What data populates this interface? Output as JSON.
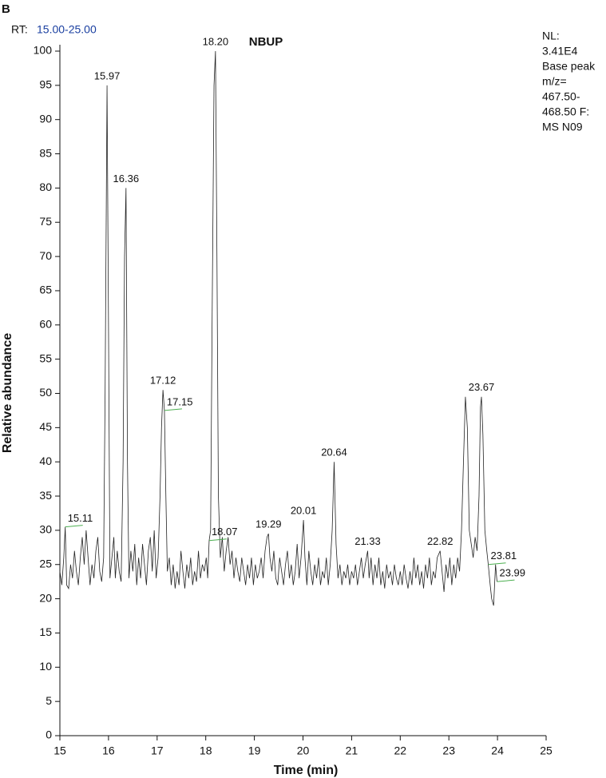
{
  "chart_data": {
    "type": "line",
    "panel_label": "B",
    "rt_label": "RT:",
    "rt_range": "15.00-25.00",
    "title": "NBUP",
    "info": [
      "NL:",
      "3.41E4",
      "Base peak",
      "m/z=",
      "467.50-",
      "468.50 F:",
      "MS N09"
    ],
    "xlabel": "Time (min)",
    "ylabel": "Relative abundance",
    "xlim": [
      15,
      25
    ],
    "ylim": [
      0,
      100
    ],
    "xticks": [
      15,
      16,
      17,
      18,
      19,
      20,
      21,
      22,
      23,
      24,
      25
    ],
    "yticks": [
      0,
      5,
      10,
      15,
      20,
      25,
      30,
      35,
      40,
      45,
      50,
      55,
      60,
      65,
      70,
      75,
      80,
      85,
      90,
      95,
      100
    ],
    "color": "#222222",
    "leader_color": "#4caf50",
    "x": [
      15.0,
      15.04,
      15.08,
      15.11,
      15.14,
      15.18,
      15.22,
      15.26,
      15.3,
      15.34,
      15.38,
      15.42,
      15.46,
      15.5,
      15.54,
      15.58,
      15.62,
      15.66,
      15.7,
      15.74,
      15.78,
      15.82,
      15.86,
      15.9,
      15.93,
      15.97,
      16.0,
      16.03,
      16.07,
      16.11,
      16.14,
      16.18,
      16.22,
      16.26,
      16.3,
      16.33,
      16.36,
      16.39,
      16.42,
      16.46,
      16.5,
      16.54,
      16.58,
      16.62,
      16.66,
      16.7,
      16.74,
      16.78,
      16.82,
      16.86,
      16.9,
      16.94,
      16.98,
      17.02,
      17.06,
      17.09,
      17.12,
      17.15,
      17.18,
      17.21,
      17.25,
      17.29,
      17.33,
      17.37,
      17.41,
      17.45,
      17.49,
      17.53,
      17.57,
      17.61,
      17.65,
      17.69,
      17.73,
      17.77,
      17.81,
      17.85,
      17.89,
      17.93,
      17.97,
      18.01,
      18.04,
      18.07,
      18.1,
      18.13,
      18.17,
      18.2,
      18.23,
      18.26,
      18.3,
      18.34,
      18.38,
      18.42,
      18.46,
      18.5,
      18.54,
      18.58,
      18.62,
      18.66,
      18.7,
      18.74,
      18.78,
      18.82,
      18.86,
      18.9,
      18.94,
      18.98,
      19.02,
      19.06,
      19.1,
      19.14,
      19.18,
      19.22,
      19.26,
      19.29,
      19.32,
      19.36,
      19.4,
      19.44,
      19.48,
      19.52,
      19.56,
      19.6,
      19.64,
      19.68,
      19.72,
      19.76,
      19.8,
      19.84,
      19.88,
      19.92,
      19.96,
      20.01,
      20.04,
      20.08,
      20.12,
      20.16,
      20.2,
      20.24,
      20.28,
      20.32,
      20.36,
      20.4,
      20.44,
      20.48,
      20.52,
      20.56,
      20.6,
      20.64,
      20.68,
      20.72,
      20.76,
      20.8,
      20.84,
      20.88,
      20.92,
      20.96,
      21.0,
      21.04,
      21.08,
      21.12,
      21.16,
      21.2,
      21.24,
      21.28,
      21.33,
      21.36,
      21.4,
      21.44,
      21.48,
      21.52,
      21.56,
      21.6,
      21.64,
      21.68,
      21.72,
      21.76,
      21.8,
      21.84,
      21.88,
      21.92,
      21.96,
      22.0,
      22.04,
      22.08,
      22.12,
      22.16,
      22.2,
      22.24,
      22.28,
      22.32,
      22.36,
      22.4,
      22.44,
      22.48,
      22.52,
      22.56,
      22.6,
      22.64,
      22.68,
      22.72,
      22.76,
      22.82,
      22.86,
      22.9,
      22.94,
      22.98,
      23.02,
      23.06,
      23.1,
      23.14,
      23.18,
      23.22,
      23.26,
      23.3,
      23.34,
      23.38,
      23.42,
      23.46,
      23.5,
      23.54,
      23.58,
      23.62,
      23.65,
      23.67,
      23.7,
      23.74,
      23.78,
      23.81,
      23.85,
      23.88,
      23.92,
      23.96,
      23.99
    ],
    "values": [
      24,
      22,
      26,
      30.5,
      22,
      21.5,
      25,
      23,
      27,
      24,
      22,
      26,
      29,
      25,
      30,
      26,
      22,
      25,
      23,
      27,
      29,
      24,
      22.5,
      26,
      50,
      95,
      60,
      23,
      26,
      29,
      23,
      27,
      24,
      22.5,
      40,
      70,
      80,
      40,
      23,
      27,
      24,
      28,
      22,
      26,
      23,
      28,
      25,
      22,
      27,
      29,
      24,
      30,
      23,
      26,
      35,
      45,
      50.5,
      47.5,
      35,
      24,
      26,
      22,
      25,
      21.5,
      24,
      22,
      27,
      24,
      21.5,
      25,
      23,
      26,
      22,
      24,
      22.5,
      27,
      23,
      25,
      24,
      26,
      23,
      28.5,
      30,
      60,
      95,
      100,
      70,
      35,
      26,
      29,
      24,
      27,
      29,
      25,
      27,
      23,
      26,
      24,
      22.5,
      26,
      24,
      22,
      25,
      23,
      26,
      22,
      25,
      23,
      24,
      26,
      23,
      27,
      29,
      29.5,
      26,
      24,
      27,
      23,
      22,
      26,
      24,
      22,
      25,
      27,
      23,
      25,
      22,
      24,
      28,
      23,
      26,
      31.5,
      26,
      22,
      27,
      24,
      22,
      25,
      23,
      26,
      22,
      24,
      23,
      26,
      22,
      25,
      30,
      40,
      28,
      23,
      25,
      22,
      24,
      23,
      25,
      22,
      24,
      23,
      25,
      22,
      24,
      26,
      23,
      25,
      27,
      23,
      26,
      22,
      25,
      23,
      26,
      22,
      24,
      21.5,
      25,
      23,
      24,
      22,
      25,
      23,
      22,
      24,
      22,
      25,
      23,
      21.5,
      24,
      22,
      26,
      23,
      25,
      22,
      24,
      21.5,
      25,
      23,
      26,
      22,
      24,
      23,
      26,
      27,
      24,
      21,
      25,
      23,
      26,
      22,
      25,
      23,
      26,
      24,
      30,
      40,
      49.5,
      45,
      30,
      28,
      26,
      29,
      27,
      35,
      48,
      49.5,
      44,
      30,
      27,
      25,
      22,
      20,
      19,
      25,
      22.5
    ],
    "annotations": [
      {
        "label": "15.11",
        "x": 15.11,
        "y": 30.5,
        "leader": true
      },
      {
        "label": "15.97",
        "x": 15.97,
        "y": 95,
        "leader": false
      },
      {
        "label": "16.36",
        "x": 16.36,
        "y": 80,
        "leader": false
      },
      {
        "label": "17.12",
        "x": 17.12,
        "y": 50.5,
        "leader": false
      },
      {
        "label": "17.15",
        "x": 17.15,
        "y": 47.5,
        "leader": true
      },
      {
        "label": "18.07",
        "x": 18.07,
        "y": 28.5,
        "leader": true
      },
      {
        "label": "18.20",
        "x": 18.2,
        "y": 100,
        "leader": false
      },
      {
        "label": "19.29",
        "x": 19.29,
        "y": 29.5,
        "leader": false
      },
      {
        "label": "20.01",
        "x": 20.01,
        "y": 31.5,
        "leader": false
      },
      {
        "label": "20.64",
        "x": 20.64,
        "y": 40,
        "leader": false
      },
      {
        "label": "21.33",
        "x": 21.33,
        "y": 27,
        "leader": false
      },
      {
        "label": "22.82",
        "x": 22.82,
        "y": 27,
        "leader": false
      },
      {
        "label": "23.67",
        "x": 23.67,
        "y": 49.5,
        "leader": false
      },
      {
        "label": "23.81",
        "x": 23.81,
        "y": 25,
        "leader": true
      },
      {
        "label": "23.99",
        "x": 23.99,
        "y": 22.5,
        "leader": true
      }
    ]
  }
}
